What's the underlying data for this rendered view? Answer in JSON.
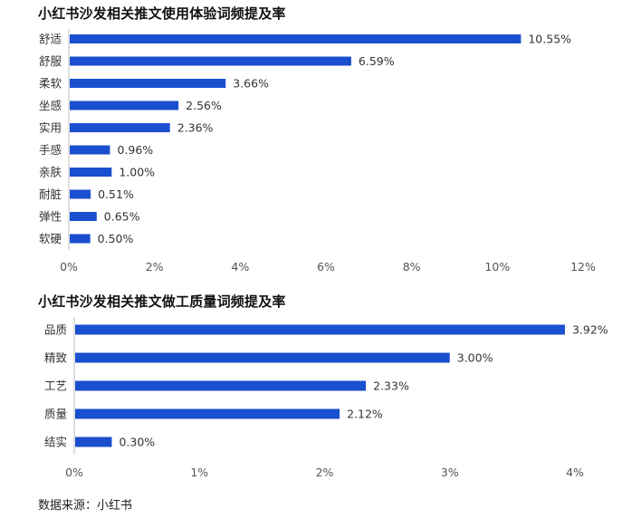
{
  "chart_data": [
    {
      "type": "bar",
      "orientation": "horizontal",
      "title": "小红书沙发相关推文使用体验词频提及率",
      "categories": [
        "舒适",
        "舒服",
        "柔软",
        "坐感",
        "实用",
        "手感",
        "亲肤",
        "耐脏",
        "弹性",
        "软硬"
      ],
      "values": [
        10.55,
        6.59,
        3.66,
        2.56,
        2.36,
        0.96,
        1.0,
        0.51,
        0.65,
        0.5
      ],
      "value_labels": [
        "10.55%",
        "6.59%",
        "3.66%",
        "2.56%",
        "2.36%",
        "0.96%",
        "1.00%",
        "0.51%",
        "0.65%",
        "0.50%"
      ],
      "xlim": [
        0,
        12
      ],
      "xticks": [
        "0%",
        "2%",
        "4%",
        "6%",
        "8%",
        "10%",
        "12%"
      ],
      "grid": false,
      "bar_color": "#1a4fcf"
    },
    {
      "type": "bar",
      "orientation": "horizontal",
      "title": "小红书沙发相关推文做工质量词频提及率",
      "categories": [
        "品质",
        "精致",
        "工艺",
        "质量",
        "结实"
      ],
      "values": [
        3.92,
        3.0,
        2.33,
        2.12,
        0.3
      ],
      "value_labels": [
        "3.92%",
        "3.00%",
        "2.33%",
        "2.12%",
        "0.30%"
      ],
      "xlim": [
        0,
        4
      ],
      "xticks": [
        "0%",
        "1%",
        "2%",
        "3%",
        "4%"
      ],
      "grid": false,
      "bar_color": "#1a4fcf"
    }
  ],
  "source": "数据来源：小红书"
}
